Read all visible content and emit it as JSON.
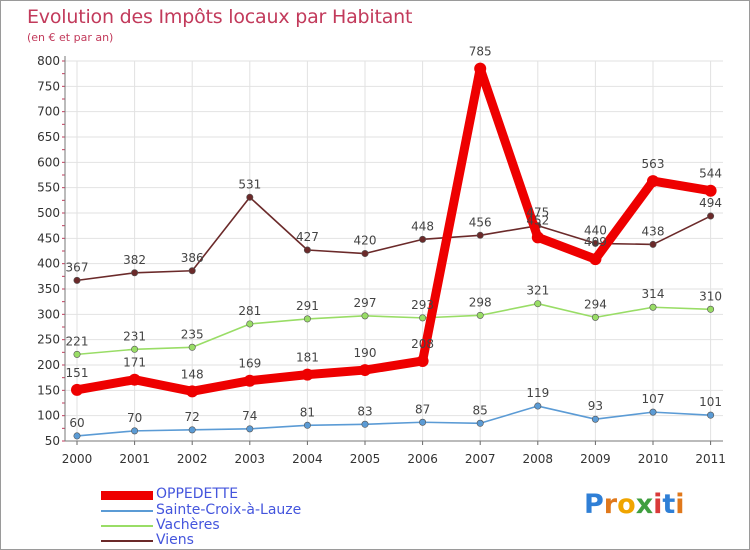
{
  "title": "Evolution des Impôts locaux par Habitant",
  "subtitle": "(en € et par an)",
  "brand": "Proxiti",
  "chart_data": {
    "type": "line",
    "title": "Evolution des Impôts locaux par Habitant",
    "subtitle": "(en € et par an)",
    "xlabel": "",
    "ylabel": "",
    "x": [
      "2000",
      "2001",
      "2002",
      "2003",
      "2004",
      "2005",
      "2006",
      "2007",
      "2008",
      "2009",
      "2010",
      "2011"
    ],
    "ylim": [
      50,
      800
    ],
    "yticks": [
      50,
      100,
      150,
      200,
      250,
      300,
      350,
      400,
      450,
      500,
      550,
      600,
      650,
      700,
      750,
      800
    ],
    "legend_position": "bottom-left",
    "series": [
      {
        "name": "OPPEDETTE",
        "color": "#ee0000",
        "values": [
          151,
          171,
          148,
          169,
          181,
          190,
          208,
          785,
          452,
          409,
          563,
          544
        ],
        "labels": [
          "151",
          "171",
          "148",
          "169",
          "181",
          "190",
          "208",
          "785",
          "452",
          "409",
          "563",
          "544"
        ]
      },
      {
        "name": "Sainte-Croix-à-Lauze",
        "color": "#5b9bd5",
        "values": [
          60,
          70,
          72,
          74,
          81,
          83,
          87,
          85,
          119,
          93,
          107,
          101
        ],
        "labels": [
          "60",
          "70",
          "72",
          "74",
          "81",
          "83",
          "87",
          "85",
          "119",
          "93",
          "107",
          "101"
        ]
      },
      {
        "name": "Vachères",
        "color": "#99dd66",
        "values": [
          221,
          231,
          235,
          281,
          291,
          297,
          293,
          298,
          321,
          294,
          314,
          310
        ],
        "labels": [
          "221",
          "231",
          "235",
          "281",
          "291",
          "297",
          "293",
          "298",
          "321",
          "294",
          "314",
          "310"
        ]
      },
      {
        "name": "Viens",
        "color": "#6b2a2a",
        "values": [
          367,
          382,
          386,
          531,
          427,
          420,
          448,
          456,
          475,
          440,
          438,
          494
        ],
        "labels": [
          "367",
          "382",
          "386",
          "531",
          "427",
          "420",
          "448",
          "456",
          "475",
          "440",
          "438",
          "494"
        ]
      }
    ]
  }
}
